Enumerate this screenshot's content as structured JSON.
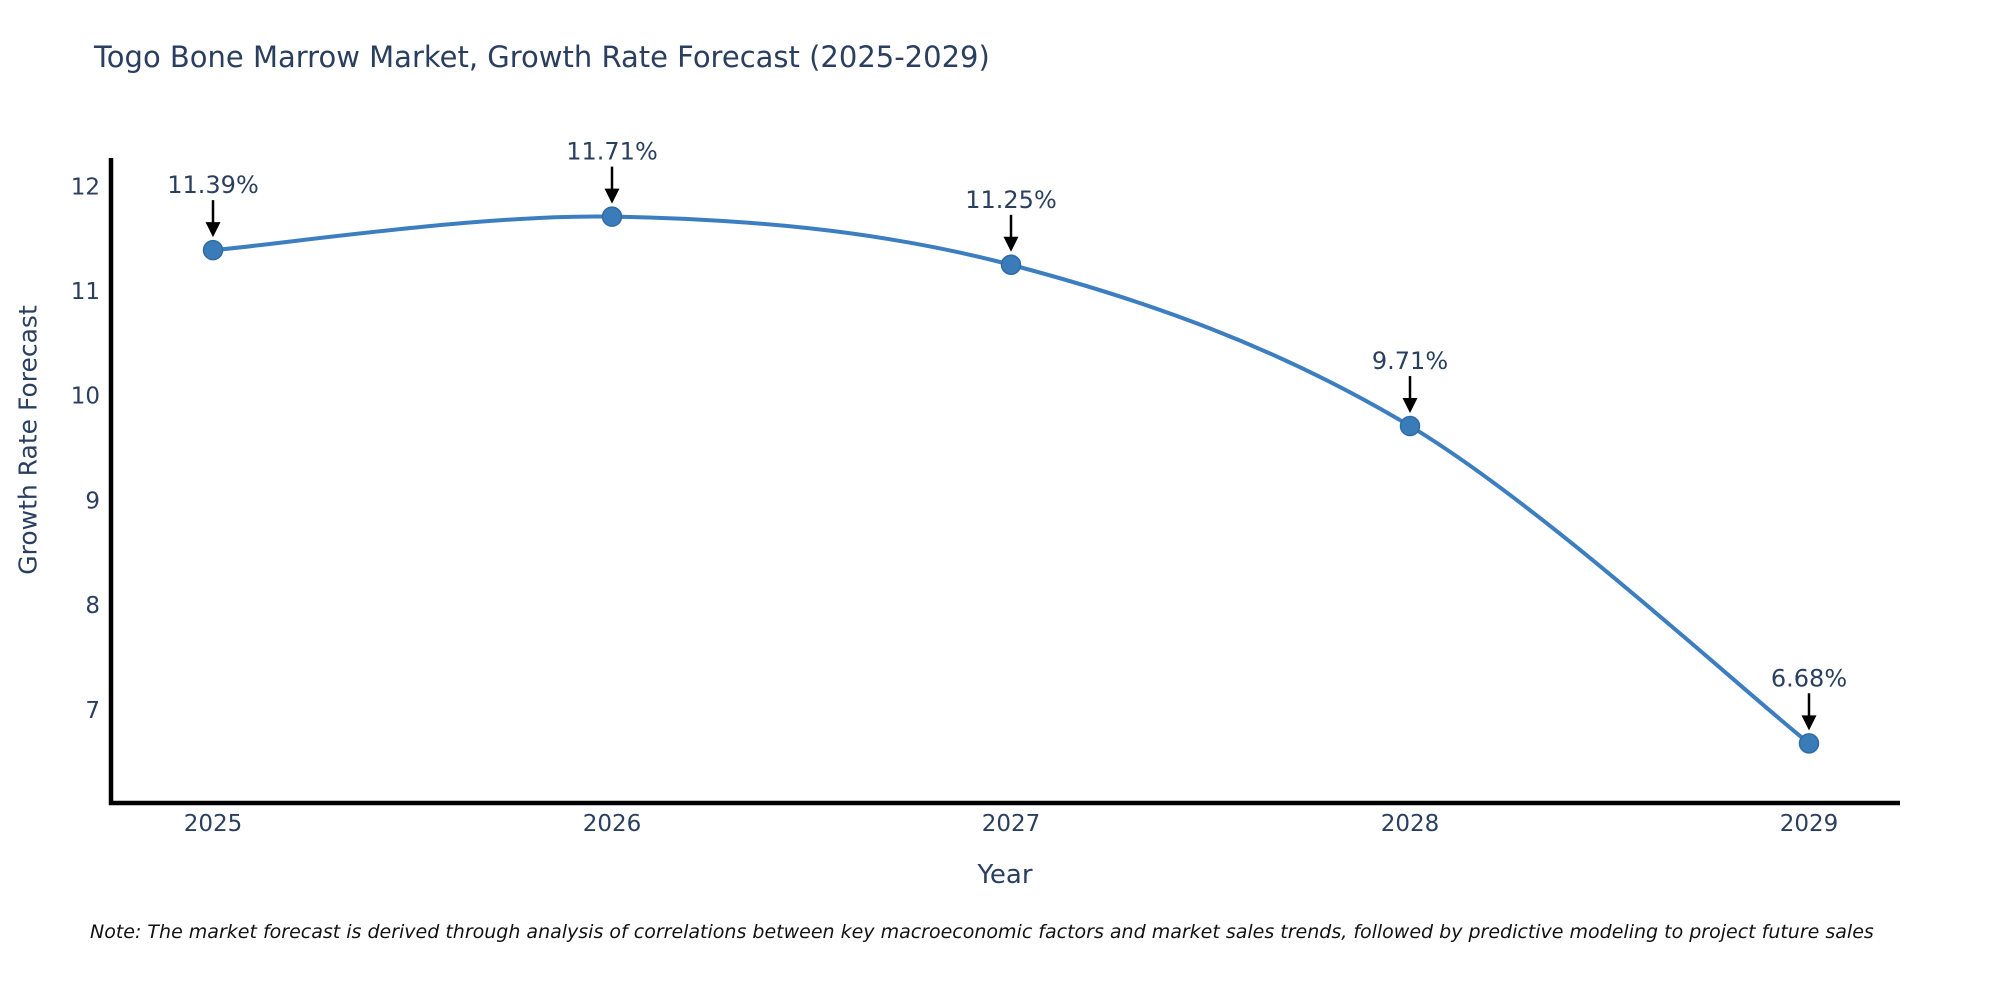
{
  "chart_data": {
    "type": "line",
    "title": "Togo Bone Marrow Market, Growth Rate Forecast (2025-2029)",
    "x": [
      "2025",
      "2026",
      "2027",
      "2028",
      "2029"
    ],
    "values": [
      11.39,
      11.71,
      11.25,
      9.71,
      6.68
    ],
    "point_labels": [
      "11.39%",
      "11.71%",
      "11.25%",
      "9.71%",
      "6.68%"
    ],
    "xlabel": "Year",
    "ylabel": "Growth Rate Forecast",
    "yticks": [
      12,
      11,
      10,
      9,
      8,
      7
    ],
    "ylim": [
      6.11,
      12.27
    ],
    "grid": false,
    "legend": false,
    "line_shape": "spline",
    "marker_style": "circle",
    "annotation_arrows": "down-arrow-to-point",
    "colors": {
      "line": "#3c7ebf",
      "marker": "#3a7cba",
      "marker_edge": "#2f6ba3",
      "axis": "#000000",
      "text": "#2a3f5f",
      "note": "#111111"
    },
    "note": "Note: The market forecast is derived through analysis of correlations between key macroeconomic factors and market sales trends, followed by predictive modeling to project future sales"
  }
}
